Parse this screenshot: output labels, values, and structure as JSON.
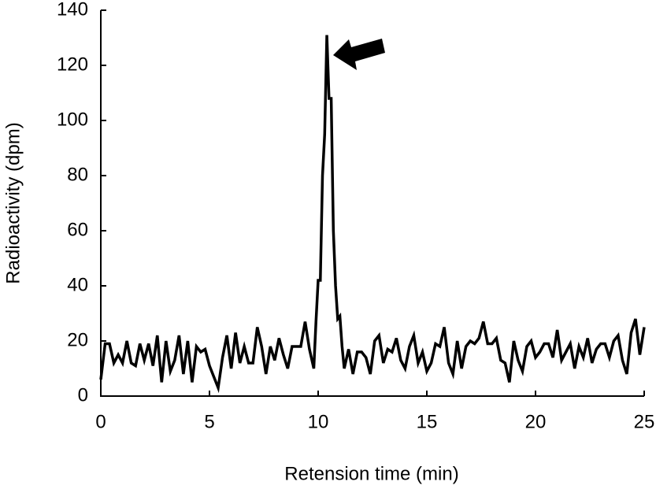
{
  "chart_data": {
    "type": "line",
    "xlabel": "Retension time (min)",
    "ylabel": "Radioactivity (dpm)",
    "color": "#000000",
    "x": [
      0,
      0.2,
      0.4,
      0.6,
      0.8,
      1,
      1.2,
      1.4,
      1.6,
      1.8,
      2,
      2.2,
      2.4,
      2.6,
      2.8,
      3,
      3.2,
      3.4,
      3.6,
      3.8,
      4,
      4.2,
      4.4,
      4.6,
      4.8,
      5,
      5.2,
      5.4,
      5.6,
      5.8,
      6,
      6.2,
      6.4,
      6.6,
      6.8,
      7,
      7.2,
      7.4,
      7.6,
      7.8,
      8,
      8.2,
      8.4,
      8.6,
      8.8,
      9,
      9.2,
      9.4,
      9.6,
      9.8,
      9.9,
      10,
      10.1,
      10.2,
      10.3,
      10.4,
      10.5,
      10.6,
      10.7,
      10.8,
      10.9,
      11,
      11.1,
      11.2,
      11.4,
      11.6,
      11.8,
      12,
      12.2,
      12.4,
      12.6,
      12.8,
      13,
      13.2,
      13.4,
      13.6,
      13.8,
      14,
      14.2,
      14.4,
      14.6,
      14.8,
      15,
      15.2,
      15.4,
      15.6,
      15.8,
      16,
      16.2,
      16.4,
      16.6,
      16.8,
      17,
      17.2,
      17.4,
      17.6,
      17.8,
      18,
      18.2,
      18.4,
      18.6,
      18.8,
      19,
      19.2,
      19.4,
      19.6,
      19.8,
      20,
      20.2,
      20.4,
      20.6,
      20.8,
      21,
      21.2,
      21.4,
      21.6,
      21.8,
      22,
      22.2,
      22.4,
      22.6,
      22.8,
      23,
      23.2,
      23.4,
      23.6,
      23.8,
      24,
      24.2,
      24.4,
      24.6,
      24.8,
      25
    ],
    "values": [
      6,
      19,
      19,
      12,
      15,
      12,
      20,
      12,
      11,
      19,
      13,
      19,
      11,
      22,
      5,
      20,
      9,
      13,
      22,
      8,
      20,
      5,
      18,
      16,
      17,
      11,
      7,
      3,
      14,
      22,
      10,
      23,
      12,
      18,
      12,
      12,
      25,
      18,
      8,
      18,
      13,
      21,
      15,
      10,
      18,
      18,
      18,
      27,
      17,
      10,
      27,
      42,
      42,
      80,
      95,
      131,
      108,
      108,
      60,
      40,
      28,
      29,
      18,
      10,
      17,
      8,
      16,
      16,
      14,
      8,
      20,
      22,
      12,
      17,
      16,
      21,
      13,
      10,
      18,
      22,
      12,
      16,
      9,
      12,
      19,
      18,
      25,
      12,
      8,
      20,
      10,
      18,
      20,
      19,
      21,
      27,
      19,
      19,
      21,
      13,
      12,
      5,
      20,
      13,
      9,
      18,
      20,
      14,
      16,
      19,
      19,
      14,
      24,
      13,
      16,
      19,
      10,
      18,
      14,
      21,
      12,
      17,
      19,
      19,
      14,
      20,
      22,
      13,
      8,
      23,
      28,
      15,
      25
    ],
    "xlim": [
      0,
      25
    ],
    "xticks": [
      0,
      5,
      10,
      15,
      20,
      25
    ],
    "ylim": [
      0,
      140
    ],
    "yticks": [
      0,
      20,
      40,
      60,
      80,
      100,
      120,
      140
    ]
  }
}
